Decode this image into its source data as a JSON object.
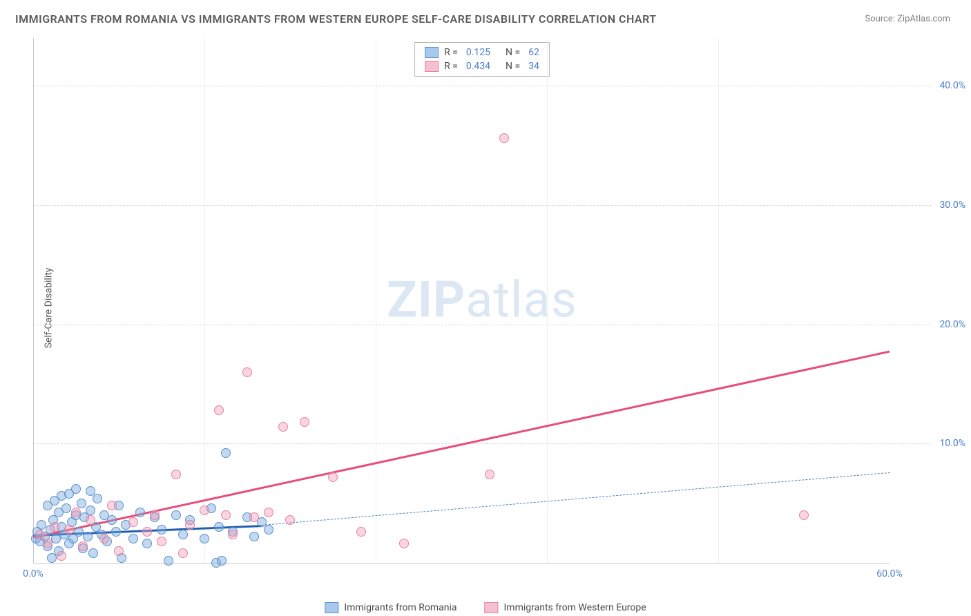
{
  "title": "IMMIGRANTS FROM ROMANIA VS IMMIGRANTS FROM WESTERN EUROPE SELF-CARE DISABILITY CORRELATION CHART",
  "source": "Source: ZipAtlas.com",
  "ylabel": "Self-Care Disability",
  "watermark_bold": "ZIP",
  "watermark_light": "atlas",
  "chart": {
    "type": "scatter",
    "xlim": [
      0,
      60
    ],
    "ylim": [
      0,
      44
    ],
    "xtick_values": [
      0,
      60
    ],
    "xtick_labels": [
      "0.0%",
      "60.0%"
    ],
    "ytick_values": [
      10,
      20,
      30,
      40
    ],
    "ytick_labels": [
      "10.0%",
      "20.0%",
      "30.0%",
      "40.0%"
    ],
    "vgrid_values": [
      12,
      24,
      36,
      48
    ],
    "background_color": "#ffffff",
    "grid_color": "#d8d8d8",
    "marker_radius": 7,
    "series": [
      {
        "name": "Immigrants from Romania",
        "fill": "rgba(122,170,222,0.45)",
        "stroke": "#5a91cf",
        "swatch_fill": "#a8c9eb",
        "swatch_border": "#5a91cf",
        "r_label": "R =",
        "r_value": "0.125",
        "n_label": "N =",
        "n_value": "62",
        "trend": {
          "x1": 0,
          "y1": 2.4,
          "x2": 16,
          "y2": 3.2,
          "color": "#1f5fb0",
          "width": 2.5,
          "dash": false,
          "ext_x2": 60,
          "ext_y2": 7.6,
          "ext_color": "#4a7ec9"
        },
        "points": [
          [
            0.2,
            2.0
          ],
          [
            0.3,
            2.6
          ],
          [
            0.5,
            1.8
          ],
          [
            0.6,
            3.2
          ],
          [
            0.8,
            2.2
          ],
          [
            1.0,
            1.4
          ],
          [
            1.0,
            4.8
          ],
          [
            1.2,
            2.8
          ],
          [
            1.3,
            0.4
          ],
          [
            1.4,
            3.6
          ],
          [
            1.5,
            5.2
          ],
          [
            1.6,
            2.0
          ],
          [
            1.8,
            4.2
          ],
          [
            1.8,
            1.0
          ],
          [
            2.0,
            3.0
          ],
          [
            2.0,
            5.6
          ],
          [
            2.2,
            2.4
          ],
          [
            2.3,
            4.6
          ],
          [
            2.5,
            1.6
          ],
          [
            2.5,
            5.8
          ],
          [
            2.7,
            3.4
          ],
          [
            2.8,
            2.0
          ],
          [
            3.0,
            4.0
          ],
          [
            3.0,
            6.2
          ],
          [
            3.2,
            2.6
          ],
          [
            3.4,
            5.0
          ],
          [
            3.5,
            1.2
          ],
          [
            3.6,
            3.8
          ],
          [
            3.8,
            2.2
          ],
          [
            4.0,
            4.4
          ],
          [
            4.0,
            6.0
          ],
          [
            4.2,
            0.8
          ],
          [
            4.4,
            3.0
          ],
          [
            4.5,
            5.4
          ],
          [
            4.8,
            2.4
          ],
          [
            5.0,
            4.0
          ],
          [
            5.2,
            1.8
          ],
          [
            5.5,
            3.6
          ],
          [
            5.8,
            2.6
          ],
          [
            6.0,
            4.8
          ],
          [
            6.2,
            0.4
          ],
          [
            6.5,
            3.2
          ],
          [
            7.0,
            2.0
          ],
          [
            7.5,
            4.2
          ],
          [
            8.0,
            1.6
          ],
          [
            8.5,
            3.8
          ],
          [
            9.0,
            2.8
          ],
          [
            9.5,
            0.2
          ],
          [
            10.0,
            4.0
          ],
          [
            10.5,
            2.4
          ],
          [
            11.0,
            3.6
          ],
          [
            12.0,
            2.0
          ],
          [
            12.5,
            4.6
          ],
          [
            12.8,
            0.0
          ],
          [
            13.0,
            3.0
          ],
          [
            13.2,
            0.2
          ],
          [
            13.5,
            9.2
          ],
          [
            14.0,
            2.6
          ],
          [
            15.0,
            3.8
          ],
          [
            15.5,
            2.2
          ],
          [
            16.0,
            3.4
          ],
          [
            16.5,
            2.8
          ]
        ]
      },
      {
        "name": "Immigrants from Western Europe",
        "fill": "rgba(240,150,180,0.40)",
        "stroke": "#e8809f",
        "swatch_fill": "#f4c1d2",
        "swatch_border": "#e8809f",
        "r_label": "R =",
        "r_value": "0.434",
        "n_label": "N =",
        "n_value": "34",
        "trend": {
          "x1": 0,
          "y1": 2.2,
          "x2": 60,
          "y2": 17.8,
          "color": "#e84d7a",
          "width": 2.5,
          "dash": false
        },
        "points": [
          [
            0.5,
            2.4
          ],
          [
            1.0,
            1.6
          ],
          [
            1.5,
            3.0
          ],
          [
            2.0,
            0.6
          ],
          [
            2.5,
            2.8
          ],
          [
            3.0,
            4.2
          ],
          [
            3.5,
            1.4
          ],
          [
            4.0,
            3.6
          ],
          [
            5.0,
            2.0
          ],
          [
            5.5,
            4.8
          ],
          [
            6.0,
            1.0
          ],
          [
            7.0,
            3.4
          ],
          [
            8.0,
            2.6
          ],
          [
            8.5,
            4.0
          ],
          [
            9.0,
            1.8
          ],
          [
            10.0,
            7.4
          ],
          [
            10.5,
            0.8
          ],
          [
            11.0,
            3.2
          ],
          [
            12.0,
            4.4
          ],
          [
            13.0,
            12.8
          ],
          [
            13.5,
            4.0
          ],
          [
            14.0,
            2.4
          ],
          [
            15.0,
            16.0
          ],
          [
            15.5,
            3.8
          ],
          [
            16.5,
            4.2
          ],
          [
            17.5,
            11.4
          ],
          [
            18.0,
            3.6
          ],
          [
            19.0,
            11.8
          ],
          [
            21.0,
            7.2
          ],
          [
            23.0,
            2.6
          ],
          [
            26.0,
            1.6
          ],
          [
            32.0,
            7.4
          ],
          [
            33.0,
            35.6
          ],
          [
            54.0,
            4.0
          ]
        ]
      }
    ]
  },
  "legend_bottom": [
    {
      "label": "Immigrants from Romania",
      "series": 0
    },
    {
      "label": "Immigrants from Western Europe",
      "series": 1
    }
  ]
}
